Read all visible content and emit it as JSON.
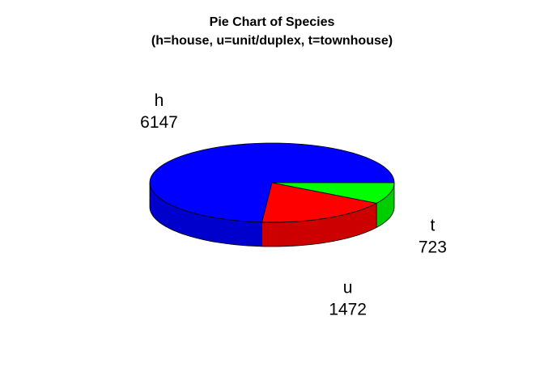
{
  "chart_data": {
    "type": "pie",
    "title": "Pie Chart of Species",
    "subtitle": "(h=house, u=unit/duplex, t=townhouse)",
    "slices": [
      {
        "label": "h",
        "value": 6147,
        "color": "#0000ff",
        "side_color": "#0000cd"
      },
      {
        "label": "u",
        "value": 1472,
        "color": "#ff0000",
        "side_color": "#cd0000"
      },
      {
        "label": "t",
        "value": 723,
        "color": "#00ff00",
        "side_color": "#00cd00"
      }
    ],
    "style": "3d"
  }
}
